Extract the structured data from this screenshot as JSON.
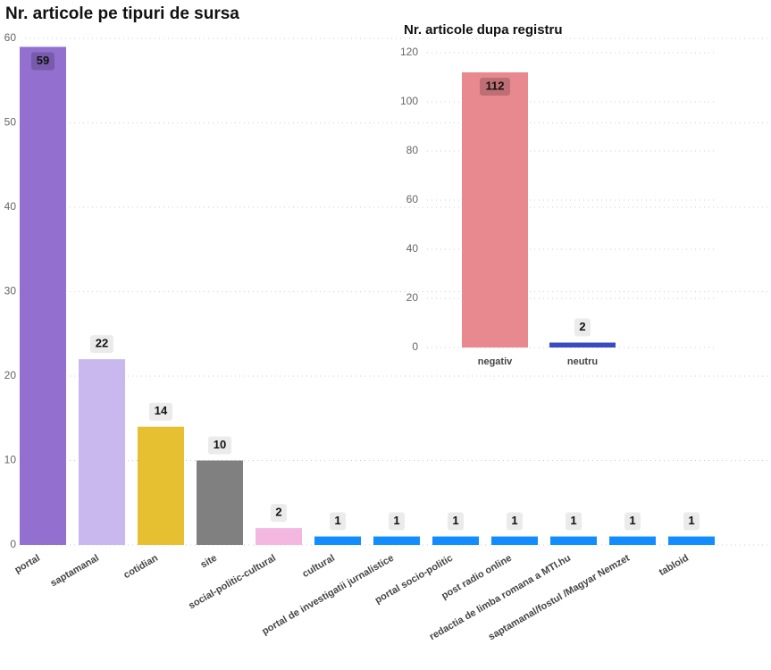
{
  "chart_data": [
    {
      "type": "bar",
      "title": "Nr. articole pe tipuri de sursa",
      "categories": [
        "portal",
        "saptamanal",
        "cotidian",
        "site",
        "social-politic-cultural",
        "cultural",
        "portal de investigatii jurnalistice",
        "portal socio-politic",
        "post radio online",
        "redactia de limba romana a MTI.hu",
        "saptamanal/fostul /Magyar Nemzet",
        "tabloid"
      ],
      "values": [
        59,
        22,
        14,
        10,
        2,
        1,
        1,
        1,
        1,
        1,
        1,
        1
      ],
      "colors": [
        "#9370d0",
        "#c8b8ee",
        "#e6c030",
        "#808080",
        "#f4b8e0",
        "#118dff",
        "#118dff",
        "#118dff",
        "#118dff",
        "#118dff",
        "#118dff",
        "#118dff"
      ],
      "ylim": [
        0,
        60
      ],
      "yticks": [
        0,
        10,
        20,
        30,
        40,
        50,
        60
      ],
      "grid": true
    },
    {
      "type": "bar",
      "title": "Nr. articole dupa registru",
      "categories": [
        "negativ",
        "neutru"
      ],
      "values": [
        112,
        2
      ],
      "colors": [
        "#e8888f",
        "#3a4bc0"
      ],
      "ylim": [
        0,
        120
      ],
      "yticks": [
        0,
        20,
        40,
        60,
        80,
        100,
        120
      ],
      "grid": true
    }
  ]
}
